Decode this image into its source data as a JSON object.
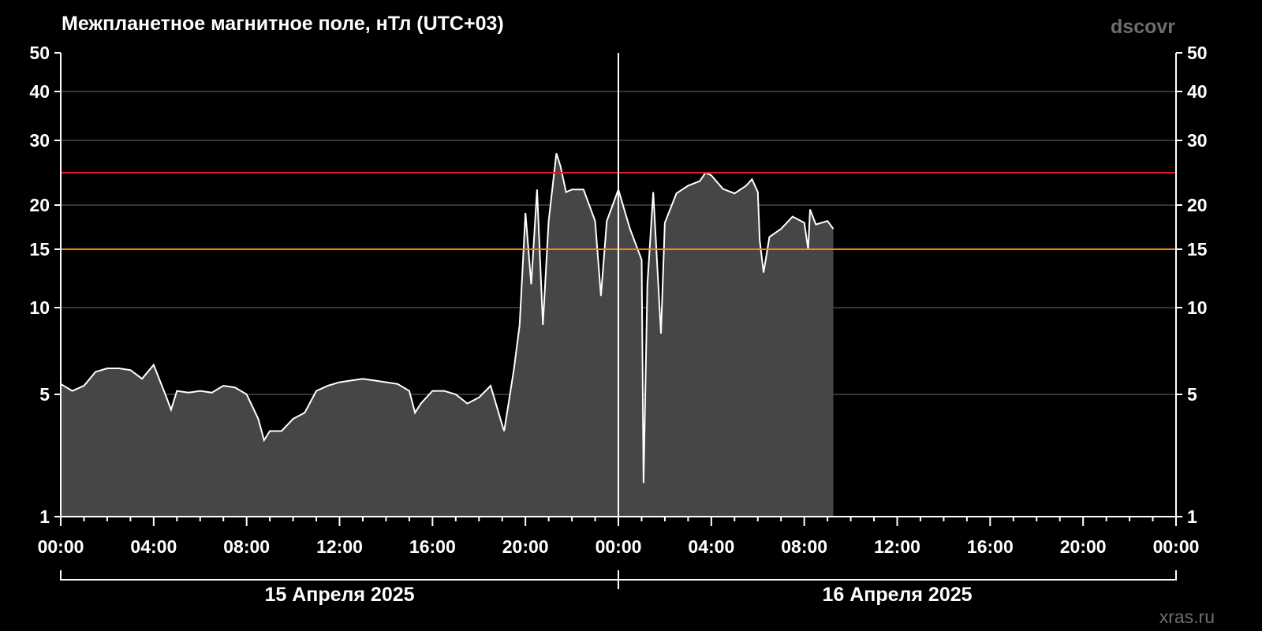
{
  "chart_data": {
    "type": "area",
    "title": "Межпланетное магнитное поле, нТл (UTC+03)",
    "source_label": "dscovr",
    "site_label": "xras.ru",
    "y_ticks": [
      1,
      5,
      10,
      15,
      20,
      30,
      40,
      50
    ],
    "ylim": [
      1,
      50
    ],
    "x_ticks": [
      "00:00",
      "04:00",
      "08:00",
      "12:00",
      "16:00",
      "20:00",
      "00:00",
      "04:00",
      "08:00",
      "12:00",
      "16:00",
      "20:00",
      "00:00"
    ],
    "xlim": [
      "2025-04-15 00:00",
      "2025-04-17 00:00"
    ],
    "date_labels": [
      "15 Апреля 2025",
      "16 Апреля 2025"
    ],
    "grid": true,
    "thresholds": [
      {
        "value": 25,
        "color": "#e31b1b"
      },
      {
        "value": 15,
        "color": "#f08a12"
      }
    ],
    "colors": {
      "background": "#000000",
      "fill": "#464547",
      "line": "#ffffff",
      "grid": "#555555"
    },
    "series": [
      {
        "points": [
          [
            "2025-04-15 00:00",
            5.6
          ],
          [
            "2025-04-15 00:30",
            5.2
          ],
          [
            "2025-04-15 01:00",
            5.5
          ],
          [
            "2025-04-15 01:30",
            6.3
          ],
          [
            "2025-04-15 02:00",
            6.5
          ],
          [
            "2025-04-15 02:30",
            6.5
          ],
          [
            "2025-04-15 03:00",
            6.4
          ],
          [
            "2025-04-15 03:30",
            5.9
          ],
          [
            "2025-04-15 04:00",
            6.7
          ],
          [
            "2025-04-15 04:30",
            5.0
          ],
          [
            "2025-04-15 04:45",
            4.5
          ],
          [
            "2025-04-15 05:00",
            5.2
          ],
          [
            "2025-04-15 05:30",
            5.1
          ],
          [
            "2025-04-15 06:00",
            5.2
          ],
          [
            "2025-04-15 06:30",
            5.1
          ],
          [
            "2025-04-15 07:00",
            5.5
          ],
          [
            "2025-04-15 07:30",
            5.4
          ],
          [
            "2025-04-15 08:00",
            5.0
          ],
          [
            "2025-04-15 08:30",
            4.2
          ],
          [
            "2025-04-15 08:45",
            3.5
          ],
          [
            "2025-04-15 09:00",
            3.8
          ],
          [
            "2025-04-15 09:30",
            3.8
          ],
          [
            "2025-04-15 10:00",
            4.2
          ],
          [
            "2025-04-15 10:30",
            4.4
          ],
          [
            "2025-04-15 11:00",
            5.2
          ],
          [
            "2025-04-15 11:30",
            5.5
          ],
          [
            "2025-04-15 12:00",
            5.7
          ],
          [
            "2025-04-15 12:30",
            5.8
          ],
          [
            "2025-04-15 13:00",
            5.9
          ],
          [
            "2025-04-15 13:30",
            5.8
          ],
          [
            "2025-04-15 14:00",
            5.7
          ],
          [
            "2025-04-15 14:30",
            5.6
          ],
          [
            "2025-04-15 15:00",
            5.2
          ],
          [
            "2025-04-15 15:15",
            4.4
          ],
          [
            "2025-04-15 15:30",
            4.7
          ],
          [
            "2025-04-15 16:00",
            5.2
          ],
          [
            "2025-04-15 16:30",
            5.2
          ],
          [
            "2025-04-15 17:00",
            5.0
          ],
          [
            "2025-04-15 17:30",
            4.7
          ],
          [
            "2025-04-15 18:00",
            4.9
          ],
          [
            "2025-04-15 18:30",
            5.5
          ],
          [
            "2025-04-15 19:00",
            4.0
          ],
          [
            "2025-04-15 19:05",
            3.8
          ],
          [
            "2025-04-15 19:30",
            6.4
          ],
          [
            "2025-04-15 19:45",
            9.0
          ],
          [
            "2025-04-15 20:00",
            19.1
          ],
          [
            "2025-04-15 20:15",
            12.0
          ],
          [
            "2025-04-15 20:30",
            22.4
          ],
          [
            "2025-04-15 20:45",
            9.0
          ],
          [
            "2025-04-15 21:00",
            18.2
          ],
          [
            "2025-04-15 21:20",
            28.0
          ],
          [
            "2025-04-15 21:30",
            26.1
          ],
          [
            "2025-04-15 21:45",
            22.0
          ],
          [
            "2025-04-15 22:00",
            22.4
          ],
          [
            "2025-04-15 22:30",
            22.4
          ],
          [
            "2025-04-15 23:00",
            18.2
          ],
          [
            "2025-04-15 23:15",
            11.0
          ],
          [
            "2025-04-15 23:30",
            18.2
          ],
          [
            "2025-04-16 00:00",
            22.4
          ],
          [
            "2025-04-16 00:30",
            17.3
          ],
          [
            "2025-04-16 01:00",
            14.1
          ],
          [
            "2025-04-16 01:05",
            2.1
          ],
          [
            "2025-04-16 01:15",
            12.0
          ],
          [
            "2025-04-16 01:30",
            22.0
          ],
          [
            "2025-04-16 01:50",
            8.5
          ],
          [
            "2025-04-16 02:00",
            18.0
          ],
          [
            "2025-04-16 02:30",
            21.8
          ],
          [
            "2025-04-16 03:00",
            23.0
          ],
          [
            "2025-04-16 03:30",
            23.7
          ],
          [
            "2025-04-16 03:45",
            25.0
          ],
          [
            "2025-04-16 04:00",
            24.6
          ],
          [
            "2025-04-16 04:30",
            22.5
          ],
          [
            "2025-04-16 05:00",
            21.8
          ],
          [
            "2025-04-16 05:30",
            23.0
          ],
          [
            "2025-04-16 05:45",
            24.0
          ],
          [
            "2025-04-16 06:00",
            22.0
          ],
          [
            "2025-04-16 06:05",
            16.0
          ],
          [
            "2025-04-16 06:15",
            13.0
          ],
          [
            "2025-04-16 06:30",
            16.4
          ],
          [
            "2025-04-16 07:00",
            17.3
          ],
          [
            "2025-04-16 07:30",
            18.7
          ],
          [
            "2025-04-16 08:00",
            18.0
          ],
          [
            "2025-04-16 08:10",
            15.0
          ],
          [
            "2025-04-16 08:15",
            19.5
          ],
          [
            "2025-04-16 08:30",
            17.8
          ],
          [
            "2025-04-16 09:00",
            18.2
          ],
          [
            "2025-04-16 09:15",
            17.3
          ]
        ]
      }
    ]
  }
}
